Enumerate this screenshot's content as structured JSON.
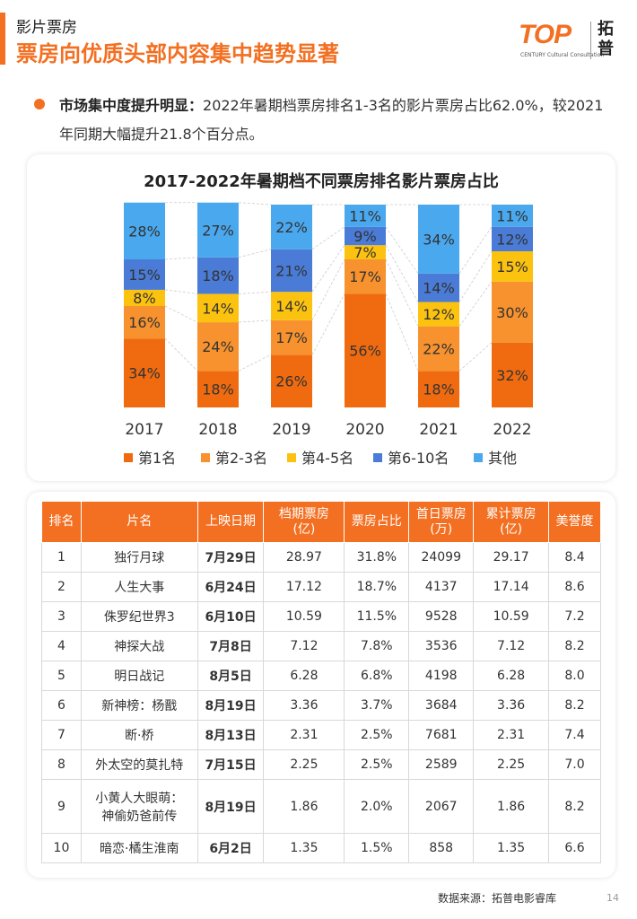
{
  "header": {
    "kicker": "影片票房",
    "headline": "票房向优质头部内容集中趋势显著"
  },
  "logo": {
    "mark": "TOP",
    "subtitle": "CENTURY Cultural Consultation",
    "cn": "拓普"
  },
  "bullet": {
    "lead": "市场集中度提升明显：",
    "text": "2022年暑期档票房排名1-3名的影片票房占比62.0%，较2021年同期大幅提升21.8个百分点。"
  },
  "chart_data": {
    "type": "bar",
    "stacked": true,
    "percent": true,
    "title": "2017-2022年暑期档不同票房排名影片票房占比",
    "categories": [
      "2017",
      "2018",
      "2019",
      "2020",
      "2021",
      "2022"
    ],
    "series": [
      {
        "name": "第1名",
        "color": "#f06b10",
        "values": [
          34,
          18,
          26,
          56,
          18,
          32
        ]
      },
      {
        "name": "第2-3名",
        "color": "#f7922e",
        "values": [
          16,
          24,
          17,
          17,
          22,
          30
        ]
      },
      {
        "name": "第4-5名",
        "color": "#fcc210",
        "values": [
          8,
          14,
          14,
          7,
          12,
          15
        ]
      },
      {
        "name": "第6-10名",
        "color": "#4a7bd6",
        "values": [
          15,
          18,
          21,
          9,
          14,
          12
        ]
      },
      {
        "name": "其他",
        "color": "#4aa8ee",
        "values": [
          28,
          27,
          22,
          11,
          34,
          11
        ]
      }
    ],
    "value_suffix": "%",
    "legend_position": "bottom"
  },
  "table": {
    "headers": [
      "排名",
      "片名",
      "上映日期",
      "档期票房（亿）",
      "票房占比",
      "首日票房（万）",
      "累计票房（亿）",
      "美誉度"
    ],
    "header_lines": [
      [
        "排名"
      ],
      [
        "片名"
      ],
      [
        "上映日期"
      ],
      [
        "档期票房",
        "(亿)"
      ],
      [
        "票房占比"
      ],
      [
        "首日票房",
        "(万)"
      ],
      [
        "累计票房",
        "(亿)"
      ],
      [
        "美誉度"
      ]
    ],
    "rows": [
      {
        "rank": "1",
        "title": "独行月球",
        "date": "7月29日",
        "period_box": "28.97",
        "share": "31.8%",
        "first_day": "24099",
        "total": "29.17",
        "rating": "8.4"
      },
      {
        "rank": "2",
        "title": "人生大事",
        "date": "6月24日",
        "period_box": "17.12",
        "share": "18.7%",
        "first_day": "4137",
        "total": "17.14",
        "rating": "8.6"
      },
      {
        "rank": "3",
        "title": "侏罗纪世界3",
        "date": "6月10日",
        "period_box": "10.59",
        "share": "11.5%",
        "first_day": "9528",
        "total": "10.59",
        "rating": "7.2"
      },
      {
        "rank": "4",
        "title": "神探大战",
        "date": "7月8日",
        "period_box": "7.12",
        "share": "7.8%",
        "first_day": "3536",
        "total": "7.12",
        "rating": "8.2"
      },
      {
        "rank": "5",
        "title": "明日战记",
        "date": "8月5日",
        "period_box": "6.28",
        "share": "6.8%",
        "first_day": "4198",
        "total": "6.28",
        "rating": "8.0"
      },
      {
        "rank": "6",
        "title": "新神榜：杨戬",
        "date": "8月19日",
        "period_box": "3.36",
        "share": "3.7%",
        "first_day": "3684",
        "total": "3.36",
        "rating": "8.2"
      },
      {
        "rank": "7",
        "title": "断·桥",
        "date": "8月13日",
        "period_box": "2.31",
        "share": "2.5%",
        "first_day": "7681",
        "total": "2.31",
        "rating": "7.4"
      },
      {
        "rank": "8",
        "title": "外太空的莫扎特",
        "date": "7月15日",
        "period_box": "2.25",
        "share": "2.5%",
        "first_day": "2589",
        "total": "2.25",
        "rating": "7.0"
      },
      {
        "rank": "9",
        "title": "小黄人大眼萌：神偷奶爸前传",
        "title_lines": [
          "小黄人大眼萌：",
          "神偷奶爸前传"
        ],
        "date": "8月19日",
        "period_box": "1.86",
        "share": "2.0%",
        "first_day": "2067",
        "total": "1.86",
        "rating": "8.2"
      },
      {
        "rank": "10",
        "title": "暗恋·橘生淮南",
        "date": "6月2日",
        "period_box": "1.35",
        "share": "1.5%",
        "first_day": "858",
        "total": "1.35",
        "rating": "6.6"
      }
    ]
  },
  "footer": {
    "source": "数据来源：拓普电影睿库",
    "page": "14"
  }
}
